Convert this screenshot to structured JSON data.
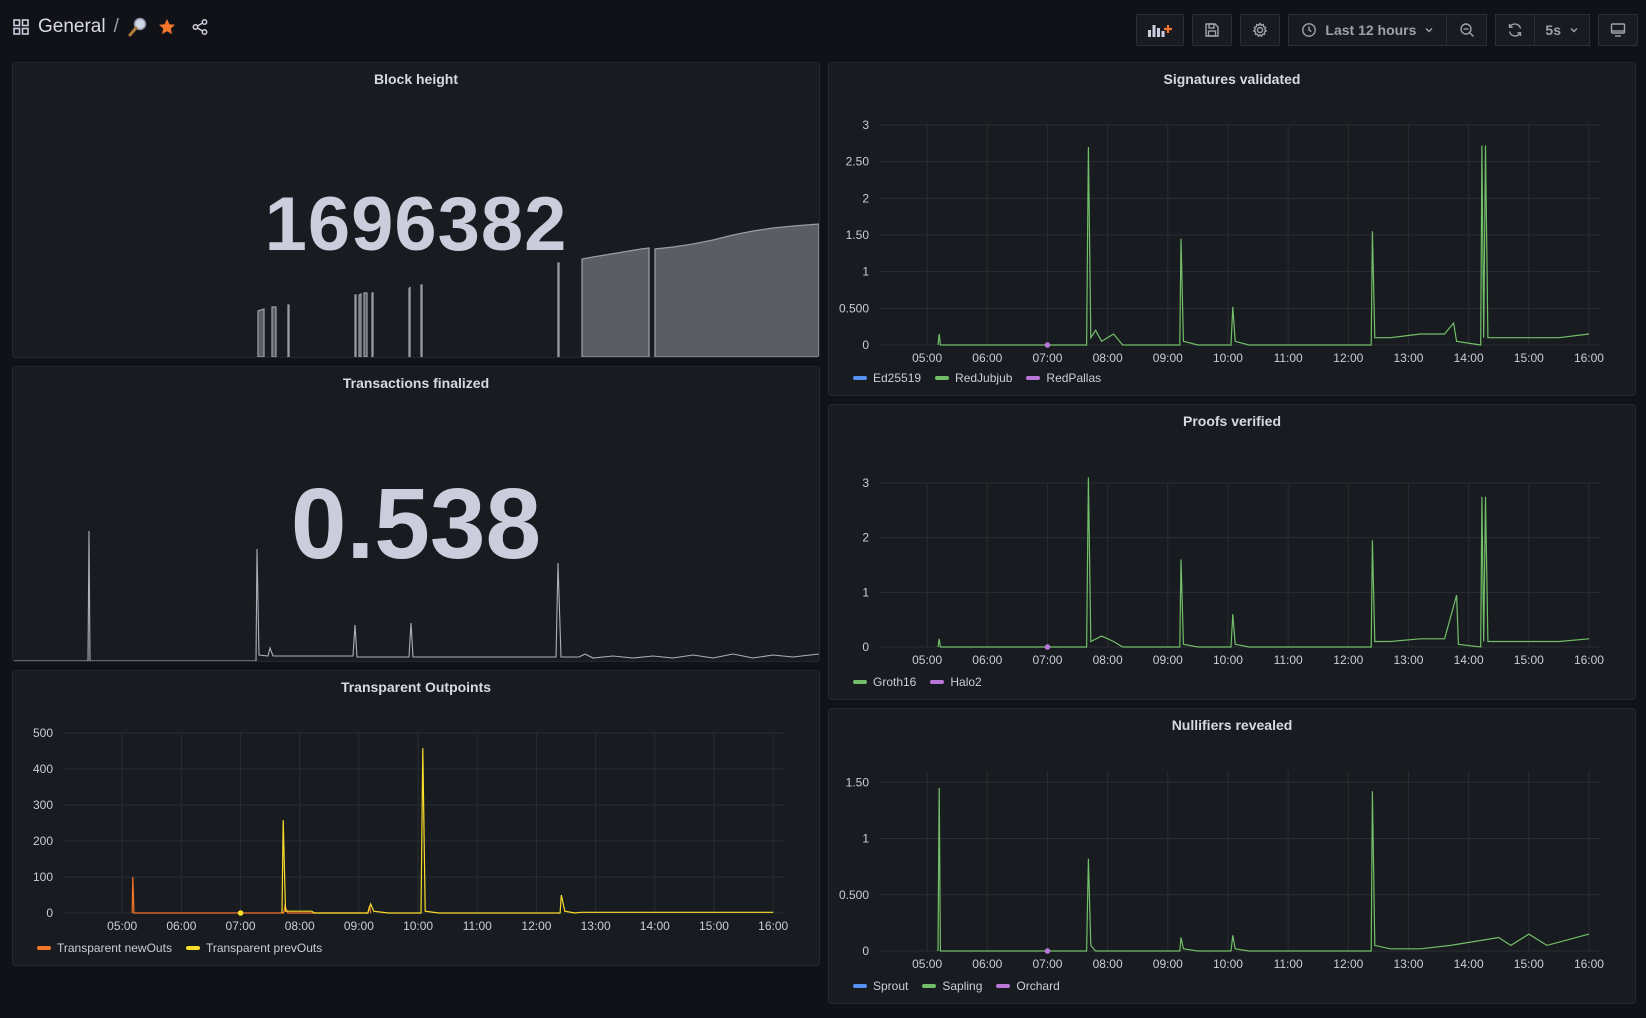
{
  "header": {
    "breadcrumb": "General",
    "separator": "/",
    "time_range_label": "Last 12 hours",
    "refresh_interval": "5s"
  },
  "panels": {
    "block_height": {
      "title": "Block height",
      "value": "1696382"
    },
    "tx_finalized": {
      "title": "Transactions finalized",
      "value": "0.538"
    },
    "transparent_outpoints": {
      "title": "Transparent Outpoints",
      "legend": [
        {
          "name": "Transparent newOuts",
          "color": "#f2762a"
        },
        {
          "name": "Transparent prevOuts",
          "color": "#fade2a"
        }
      ]
    },
    "signatures": {
      "title": "Signatures validated",
      "legend": [
        {
          "name": "Ed25519",
          "color": "#5794f2"
        },
        {
          "name": "RedJubjub",
          "color": "#73bf69"
        },
        {
          "name": "RedPallas",
          "color": "#b877d9"
        }
      ]
    },
    "proofs": {
      "title": "Proofs verified",
      "legend": [
        {
          "name": "Groth16",
          "color": "#73bf69"
        },
        {
          "name": "Halo2",
          "color": "#b877d9"
        }
      ]
    },
    "nullifiers": {
      "title": "Nullifiers revealed",
      "legend": [
        {
          "name": "Sprout",
          "color": "#5794f2"
        },
        {
          "name": "Sapling",
          "color": "#73bf69"
        },
        {
          "name": "Orchard",
          "color": "#b877d9"
        }
      ]
    }
  },
  "chart_data": [
    {
      "type": "line",
      "title": "Transparent Outpoints",
      "x_ticks": [
        "05:00",
        "06:00",
        "07:00",
        "08:00",
        "09:00",
        "10:00",
        "11:00",
        "12:00",
        "13:00",
        "14:00",
        "15:00",
        "16:00"
      ],
      "y_ticks": [
        0,
        100,
        200,
        300,
        400,
        500
      ],
      "ylim": [
        0,
        500
      ],
      "series": [
        {
          "name": "Transparent newOuts",
          "color": "#f2762a",
          "points": [
            [
              5.17,
              0
            ],
            [
              5.18,
              100
            ],
            [
              5.2,
              0
            ],
            [
              6.95,
              0
            ],
            [
              7.73,
              0
            ],
            [
              7.75,
              20
            ],
            [
              7.8,
              0
            ],
            [
              9.15,
              0
            ],
            [
              9.18,
              20
            ],
            [
              9.2,
              0
            ]
          ]
        },
        {
          "name": "Transparent prevOuts",
          "color": "#fade2a",
          "points": [
            [
              7.7,
              0
            ],
            [
              7.72,
              258
            ],
            [
              7.76,
              5
            ],
            [
              8.2,
              5
            ],
            [
              8.25,
              0
            ],
            [
              9.15,
              0
            ],
            [
              9.2,
              25
            ],
            [
              9.25,
              5
            ],
            [
              9.5,
              0
            ],
            [
              10.05,
              0
            ],
            [
              10.08,
              458
            ],
            [
              10.12,
              5
            ],
            [
              10.35,
              0
            ],
            [
              12.4,
              0
            ],
            [
              12.42,
              50
            ],
            [
              12.48,
              5
            ],
            [
              12.65,
              0
            ],
            [
              12.75,
              2
            ],
            [
              13.8,
              2
            ],
            [
              14.25,
              2
            ],
            [
              16.0,
              2
            ]
          ]
        }
      ],
      "markers": [
        {
          "x": 7.0,
          "y": 0,
          "color": "#fade2a"
        }
      ]
    },
    {
      "type": "line",
      "title": "Signatures validated",
      "x_ticks": [
        "05:00",
        "06:00",
        "07:00",
        "08:00",
        "09:00",
        "10:00",
        "11:00",
        "12:00",
        "13:00",
        "14:00",
        "15:00",
        "16:00"
      ],
      "y_ticks": [
        0,
        0.5,
        1,
        1.5,
        2,
        2.5,
        3
      ],
      "y_tick_labels": [
        "0",
        "0.500",
        "1",
        "1.50",
        "2",
        "2.50",
        "3"
      ],
      "ylim": [
        0,
        3
      ],
      "series": [
        {
          "name": "RedJubjub",
          "color": "#73bf69",
          "points": [
            [
              5.18,
              0
            ],
            [
              5.2,
              0.15
            ],
            [
              5.22,
              0
            ],
            [
              7.65,
              0
            ],
            [
              7.68,
              2.7
            ],
            [
              7.72,
              0.1
            ],
            [
              7.8,
              0.2
            ],
            [
              7.9,
              0.05
            ],
            [
              8.1,
              0.15
            ],
            [
              8.25,
              0
            ],
            [
              9.2,
              0
            ],
            [
              9.22,
              1.45
            ],
            [
              9.26,
              0.05
            ],
            [
              9.5,
              0
            ],
            [
              10.05,
              0
            ],
            [
              10.08,
              0.52
            ],
            [
              10.12,
              0.05
            ],
            [
              10.35,
              0
            ],
            [
              12.38,
              0
            ],
            [
              12.4,
              1.55
            ],
            [
              12.44,
              0.1
            ],
            [
              12.7,
              0.1
            ],
            [
              13.2,
              0.15
            ],
            [
              13.6,
              0.15
            ],
            [
              13.75,
              0.3
            ],
            [
              13.8,
              0.05
            ],
            [
              14.2,
              0
            ],
            [
              14.22,
              2.72
            ],
            [
              14.25,
              0.1
            ],
            [
              14.28,
              2.72
            ],
            [
              14.32,
              0.1
            ],
            [
              14.6,
              0.1
            ],
            [
              15.0,
              0.1
            ],
            [
              15.5,
              0.1
            ],
            [
              16.0,
              0.15
            ]
          ]
        }
      ],
      "markers": [
        {
          "x": 7.0,
          "y": 0,
          "color": "#b877d9"
        }
      ]
    },
    {
      "type": "line",
      "title": "Proofs verified",
      "x_ticks": [
        "05:00",
        "06:00",
        "07:00",
        "08:00",
        "09:00",
        "10:00",
        "11:00",
        "12:00",
        "13:00",
        "14:00",
        "15:00",
        "16:00"
      ],
      "y_ticks": [
        0,
        1,
        2,
        3
      ],
      "ylim": [
        0,
        3
      ],
      "series": [
        {
          "name": "Groth16",
          "color": "#73bf69",
          "points": [
            [
              5.18,
              0
            ],
            [
              5.2,
              0.15
            ],
            [
              5.22,
              0
            ],
            [
              7.65,
              0
            ],
            [
              7.68,
              3.1
            ],
            [
              7.72,
              0.1
            ],
            [
              7.9,
              0.2
            ],
            [
              8.1,
              0.1
            ],
            [
              8.25,
              0
            ],
            [
              9.2,
              0
            ],
            [
              9.22,
              1.6
            ],
            [
              9.26,
              0.05
            ],
            [
              9.5,
              0
            ],
            [
              10.05,
              0
            ],
            [
              10.08,
              0.6
            ],
            [
              10.12,
              0.05
            ],
            [
              10.35,
              0
            ],
            [
              12.38,
              0
            ],
            [
              12.4,
              1.95
            ],
            [
              12.44,
              0.1
            ],
            [
              12.7,
              0.1
            ],
            [
              13.2,
              0.15
            ],
            [
              13.6,
              0.15
            ],
            [
              13.8,
              0.95
            ],
            [
              13.83,
              0.05
            ],
            [
              14.2,
              0
            ],
            [
              14.22,
              2.75
            ],
            [
              14.25,
              0.1
            ],
            [
              14.28,
              2.75
            ],
            [
              14.32,
              0.1
            ],
            [
              14.6,
              0.1
            ],
            [
              15.0,
              0.1
            ],
            [
              15.5,
              0.1
            ],
            [
              16.0,
              0.15
            ]
          ]
        }
      ],
      "markers": [
        {
          "x": 7.0,
          "y": 0,
          "color": "#b877d9"
        }
      ]
    },
    {
      "type": "line",
      "title": "Nullifiers revealed",
      "x_ticks": [
        "05:00",
        "06:00",
        "07:00",
        "08:00",
        "09:00",
        "10:00",
        "11:00",
        "12:00",
        "13:00",
        "14:00",
        "15:00",
        "16:00"
      ],
      "y_ticks": [
        0,
        0.5,
        1,
        1.5
      ],
      "y_tick_labels": [
        "0",
        "0.500",
        "1",
        "1.50"
      ],
      "ylim": [
        0,
        1.6
      ],
      "series": [
        {
          "name": "Sapling",
          "color": "#73bf69",
          "points": [
            [
              5.18,
              0
            ],
            [
              5.2,
              1.45
            ],
            [
              5.22,
              0
            ],
            [
              7.65,
              0
            ],
            [
              7.68,
              0.82
            ],
            [
              7.72,
              0.05
            ],
            [
              7.8,
              0
            ],
            [
              9.2,
              0
            ],
            [
              9.22,
              0.12
            ],
            [
              9.26,
              0.02
            ],
            [
              9.5,
              0
            ],
            [
              10.05,
              0
            ],
            [
              10.08,
              0.14
            ],
            [
              10.12,
              0.02
            ],
            [
              10.35,
              0
            ],
            [
              12.38,
              0
            ],
            [
              12.4,
              1.42
            ],
            [
              12.44,
              0.05
            ],
            [
              12.7,
              0.02
            ],
            [
              13.2,
              0.02
            ],
            [
              13.7,
              0.05
            ],
            [
              14.5,
              0.12
            ],
            [
              14.7,
              0.05
            ],
            [
              15.0,
              0.15
            ],
            [
              15.3,
              0.05
            ],
            [
              16.0,
              0.15
            ]
          ]
        }
      ],
      "markers": [
        {
          "x": 7.0,
          "y": 0,
          "color": "#b877d9"
        }
      ]
    }
  ]
}
